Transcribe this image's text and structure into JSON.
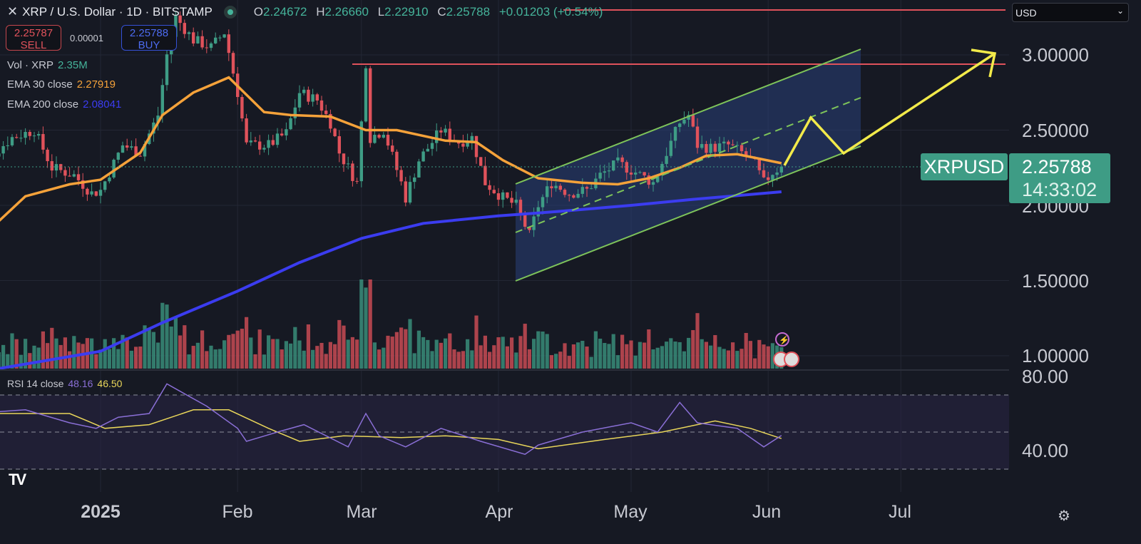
{
  "header": {
    "symbol": "XRP / U.S. Dollar · 1D · BITSTAMP",
    "open_label": "O",
    "open": "2.24672",
    "high_label": "H",
    "high": "2.26660",
    "low_label": "L",
    "low": "2.22910",
    "close_label": "C",
    "close": "2.25788",
    "change": "+0.01203 (+0.54%)"
  },
  "trade": {
    "sell_price": "2.25787",
    "sell_label": "SELL",
    "spread": "0.00001",
    "buy_price": "2.25788",
    "buy_label": "BUY"
  },
  "indicators": {
    "vol_label": "Vol · XRP",
    "vol_value": "2.35M",
    "ema30_label": "EMA 30 close",
    "ema30_value": "2.27919",
    "ema200_label": "EMA 200 close",
    "ema200_value": "2.08041",
    "rsi_label": "RSI 14 close",
    "rsi_value": "48.16",
    "rsi_ma_value": "46.50"
  },
  "currency_select": "USD",
  "price_tag": {
    "symbol": "XRPUSD",
    "price": "2.25788",
    "countdown": "14:33:02"
  },
  "colors": {
    "up": "#3e9c85",
    "down": "#e0525b",
    "ema30": "#f5a23a",
    "ema200": "#3b3cf0",
    "rsi": "#8a6fd6",
    "rsi_ma": "#e9d65a",
    "channel": "#7ec45a",
    "projection": "#f2ea4a",
    "resistance": "#e0525b"
  },
  "icons": {
    "close": "close-icon",
    "market_status": "status-dot-icon",
    "logo": "tradingview-logo",
    "settings": "gear-icon"
  },
  "chart_data": {
    "type": "candlestick",
    "price_axis": {
      "ticks": [
        "3.00000",
        "2.50000",
        "2.00000",
        "1.50000",
        "1.00000"
      ],
      "range": [
        0.9,
        3.3
      ]
    },
    "time_axis": {
      "ticks": [
        "2025",
        "Feb",
        "Mar",
        "Apr",
        "May",
        "Jun",
        "Jul"
      ],
      "tick_dates": [
        "2025-01-01",
        "2025-02-01",
        "2025-03-01",
        "2025-04-01",
        "2025-05-01",
        "2025-06-01",
        "2025-07-01"
      ]
    },
    "rsi_axis": {
      "ticks": [
        "80.00",
        "40.00"
      ],
      "bands": [
        70,
        50,
        30
      ]
    },
    "close_path": [
      [
        "2024-12-03",
        2.3
      ],
      [
        "2024-12-08",
        2.35
      ],
      [
        "2024-12-12",
        2.45
      ],
      [
        "2024-12-17",
        2.5
      ],
      [
        "2024-12-21",
        2.25
      ],
      [
        "2024-12-26",
        2.2
      ],
      [
        "2024-12-30",
        2.08
      ],
      [
        "2025-01-01",
        2.1
      ],
      [
        "2025-01-06",
        2.4
      ],
      [
        "2025-01-10",
        2.35
      ],
      [
        "2025-01-14",
        2.6
      ],
      [
        "2025-01-16",
        3.0
      ],
      [
        "2025-01-18",
        3.25
      ],
      [
        "2025-01-22",
        3.1
      ],
      [
        "2025-01-26",
        3.05
      ],
      [
        "2025-01-29",
        3.15
      ],
      [
        "2025-02-01",
        2.75
      ],
      [
        "2025-02-03",
        2.4
      ],
      [
        "2025-02-08",
        2.4
      ],
      [
        "2025-02-12",
        2.48
      ],
      [
        "2025-02-15",
        2.75
      ],
      [
        "2025-02-19",
        2.7
      ],
      [
        "2025-02-22",
        2.55
      ],
      [
        "2025-02-24",
        2.35
      ],
      [
        "2025-02-28",
        2.15
      ],
      [
        "2025-03-02",
        2.95
      ],
      [
        "2025-03-03",
        2.45
      ],
      [
        "2025-03-06",
        2.5
      ],
      [
        "2025-03-10",
        2.15
      ],
      [
        "2025-03-11",
        2.05
      ],
      [
        "2025-03-14",
        2.3
      ],
      [
        "2025-03-19",
        2.5
      ],
      [
        "2025-03-23",
        2.42
      ],
      [
        "2025-03-26",
        2.45
      ],
      [
        "2025-03-29",
        2.15
      ],
      [
        "2025-04-02",
        2.05
      ],
      [
        "2025-04-05",
        2.0
      ],
      [
        "2025-04-08",
        1.8
      ],
      [
        "2025-04-10",
        2.0
      ],
      [
        "2025-04-13",
        2.15
      ],
      [
        "2025-04-17",
        2.08
      ],
      [
        "2025-04-21",
        2.1
      ],
      [
        "2025-04-24",
        2.2
      ],
      [
        "2025-04-28",
        2.28
      ],
      [
        "2025-05-02",
        2.22
      ],
      [
        "2025-05-06",
        2.15
      ],
      [
        "2025-05-09",
        2.35
      ],
      [
        "2025-05-12",
        2.55
      ],
      [
        "2025-05-14",
        2.6
      ],
      [
        "2025-05-16",
        2.4
      ],
      [
        "2025-05-19",
        2.38
      ],
      [
        "2025-05-23",
        2.4
      ],
      [
        "2025-05-26",
        2.35
      ],
      [
        "2025-05-29",
        2.27
      ],
      [
        "2025-05-31",
        2.15
      ],
      [
        "2025-06-02",
        2.22
      ],
      [
        "2025-06-04",
        2.258
      ]
    ],
    "ema30": [
      [
        "2024-12-03",
        1.73
      ],
      [
        "2024-12-15",
        2.06
      ],
      [
        "2024-12-25",
        2.14
      ],
      [
        "2025-01-01",
        2.17
      ],
      [
        "2025-01-10",
        2.35
      ],
      [
        "2025-01-15",
        2.6
      ],
      [
        "2025-01-22",
        2.75
      ],
      [
        "2025-01-30",
        2.85
      ],
      [
        "2025-02-07",
        2.62
      ],
      [
        "2025-02-13",
        2.6
      ],
      [
        "2025-02-22",
        2.59
      ],
      [
        "2025-03-02",
        2.5
      ],
      [
        "2025-03-09",
        2.5
      ],
      [
        "2025-03-20",
        2.43
      ],
      [
        "2025-03-27",
        2.42
      ],
      [
        "2025-04-02",
        2.3
      ],
      [
        "2025-04-10",
        2.18
      ],
      [
        "2025-04-20",
        2.15
      ],
      [
        "2025-04-28",
        2.14
      ],
      [
        "2025-05-05",
        2.18
      ],
      [
        "2025-05-12",
        2.25
      ],
      [
        "2025-05-18",
        2.33
      ],
      [
        "2025-05-25",
        2.34
      ],
      [
        "2025-06-04",
        2.28
      ]
    ],
    "ema200": [
      [
        "2024-12-08",
        0.91
      ],
      [
        "2025-01-01",
        1.03
      ],
      [
        "2025-01-15",
        1.22
      ],
      [
        "2025-02-01",
        1.43
      ],
      [
        "2025-02-15",
        1.62
      ],
      [
        "2025-03-01",
        1.78
      ],
      [
        "2025-03-15",
        1.88
      ],
      [
        "2025-04-01",
        1.93
      ],
      [
        "2025-04-15",
        1.96
      ],
      [
        "2025-05-01",
        2.0
      ],
      [
        "2025-05-15",
        2.04
      ],
      [
        "2025-06-04",
        2.09
      ]
    ],
    "rsi": [
      [
        "2024-12-03",
        60
      ],
      [
        "2024-12-15",
        62
      ],
      [
        "2024-12-25",
        55
      ],
      [
        "2024-12-31",
        52
      ],
      [
        "2025-01-05",
        58
      ],
      [
        "2025-01-12",
        60
      ],
      [
        "2025-01-16",
        76
      ],
      [
        "2025-01-19",
        72
      ],
      [
        "2025-01-25",
        64
      ],
      [
        "2025-02-01",
        52
      ],
      [
        "2025-02-03",
        45
      ],
      [
        "2025-02-10",
        50
      ],
      [
        "2025-02-16",
        54
      ],
      [
        "2025-02-26",
        42
      ],
      [
        "2025-03-02",
        60
      ],
      [
        "2025-03-05",
        48
      ],
      [
        "2025-03-11",
        42
      ],
      [
        "2025-03-19",
        52
      ],
      [
        "2025-03-28",
        45
      ],
      [
        "2025-04-07",
        38
      ],
      [
        "2025-04-10",
        43
      ],
      [
        "2025-04-20",
        50
      ],
      [
        "2025-05-01",
        55
      ],
      [
        "2025-05-07",
        50
      ],
      [
        "2025-05-12",
        66
      ],
      [
        "2025-05-16",
        55
      ],
      [
        "2025-05-25",
        52
      ],
      [
        "2025-05-31",
        42
      ],
      [
        "2025-06-04",
        48.16
      ]
    ],
    "rsi_ma": [
      [
        "2024-12-03",
        60
      ],
      [
        "2024-12-25",
        60
      ],
      [
        "2025-01-02",
        52
      ],
      [
        "2025-01-12",
        54
      ],
      [
        "2025-01-22",
        62
      ],
      [
        "2025-01-30",
        62
      ],
      [
        "2025-02-08",
        52
      ],
      [
        "2025-02-15",
        45
      ],
      [
        "2025-02-25",
        48
      ],
      [
        "2025-03-10",
        47
      ],
      [
        "2025-03-20",
        48
      ],
      [
        "2025-04-01",
        46
      ],
      [
        "2025-04-10",
        41
      ],
      [
        "2025-04-25",
        46
      ],
      [
        "2025-05-08",
        50
      ],
      [
        "2025-05-20",
        56
      ],
      [
        "2025-05-28",
        52
      ],
      [
        "2025-06-04",
        46.5
      ]
    ]
  }
}
